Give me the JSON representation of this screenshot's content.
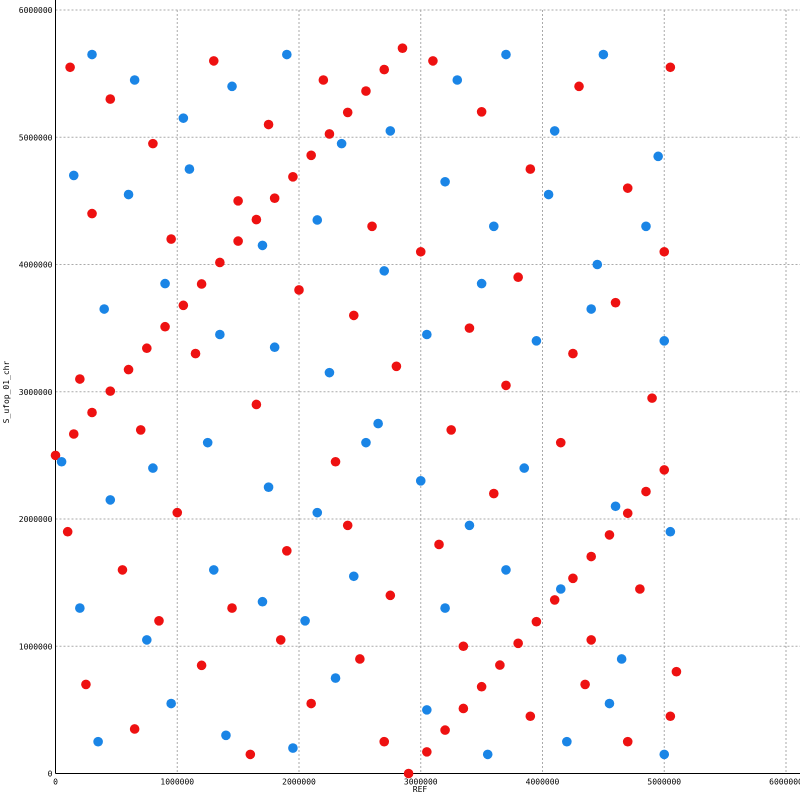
{
  "chart_data": {
    "type": "scatter",
    "xlabel": "REF",
    "ylabel": "S_ufop_01_chr",
    "xlim": [
      0,
      6000000
    ],
    "ylim": [
      0,
      6000000
    ],
    "xticks": [
      0,
      1000000,
      2000000,
      3000000,
      4000000,
      5000000,
      6000000
    ],
    "yticks": [
      0,
      1000000,
      2000000,
      3000000,
      4000000,
      5000000,
      6000000
    ],
    "grid": true,
    "series": [
      {
        "color": "#ee1111",
        "x": [
          0,
          150000,
          300000,
          450000,
          600000,
          750000,
          900000,
          1050000,
          1200000,
          1350000,
          1500000,
          1650000,
          1800000,
          1950000,
          2100000,
          2250000,
          2400000,
          2550000,
          2700000,
          2850000,
          2900000,
          3050000,
          3200000,
          3350000,
          3500000,
          3650000,
          3800000,
          3950000,
          4100000,
          4250000,
          4400000,
          4550000,
          4700000,
          4850000,
          5000000,
          120000,
          450000,
          800000,
          1300000,
          1750000,
          2200000,
          2600000,
          3100000,
          3500000,
          3900000,
          4300000,
          4700000,
          5050000,
          300000,
          950000,
          1500000,
          2000000,
          2450000,
          3000000,
          3400000,
          3800000,
          4250000,
          4600000,
          5000000,
          200000,
          700000,
          1150000,
          1650000,
          2300000,
          2800000,
          3250000,
          3700000,
          4150000,
          4900000,
          100000,
          550000,
          1000000,
          1450000,
          1900000,
          2400000,
          2750000,
          3150000,
          3600000,
          4400000,
          4800000,
          5100000,
          250000,
          650000,
          1200000,
          1600000,
          2100000,
          2500000,
          2700000,
          3350000,
          3900000,
          4350000,
          4700000,
          5050000,
          850000,
          1850000
        ],
        "values": [
          2500000,
          2668000,
          2837000,
          3005000,
          3174000,
          3342000,
          3511000,
          3679000,
          3847000,
          4016000,
          4184000,
          4353000,
          4521000,
          4689000,
          4858000,
          5026000,
          5195000,
          5363000,
          5532000,
          5700000,
          0,
          170000,
          341000,
          511000,
          682000,
          852000,
          1023000,
          1193000,
          1364000,
          1534000,
          1705000,
          1875000,
          2045000,
          2216000,
          2386000,
          5550000,
          5300000,
          4950000,
          5600000,
          5100000,
          5450000,
          4300000,
          5600000,
          5200000,
          4750000,
          5400000,
          4600000,
          5550000,
          4400000,
          4200000,
          4500000,
          3800000,
          3600000,
          4100000,
          3500000,
          3900000,
          3300000,
          3700000,
          4100000,
          3100000,
          2700000,
          3300000,
          2900000,
          2450000,
          3200000,
          2700000,
          3050000,
          2600000,
          2950000,
          1900000,
          1600000,
          2050000,
          1300000,
          1750000,
          1950000,
          1400000,
          1800000,
          2200000,
          1050000,
          1450000,
          800000,
          700000,
          350000,
          850000,
          150000,
          550000,
          900000,
          250000,
          1000000,
          450000,
          700000,
          250000,
          450000,
          1200000,
          1050000
        ]
      },
      {
        "color": "#1a85e6",
        "x": [
          300000,
          650000,
          1050000,
          1450000,
          1900000,
          2350000,
          2750000,
          3300000,
          3700000,
          4100000,
          4500000,
          4950000,
          150000,
          600000,
          1100000,
          1700000,
          2150000,
          2700000,
          3200000,
          3600000,
          4050000,
          4450000,
          4850000,
          400000,
          900000,
          1350000,
          1800000,
          2250000,
          2650000,
          3050000,
          3500000,
          3950000,
          4400000,
          5000000,
          50000,
          450000,
          800000,
          1250000,
          1750000,
          2150000,
          2550000,
          3000000,
          3400000,
          3850000,
          4600000,
          5050000,
          200000,
          750000,
          1300000,
          1700000,
          2050000,
          2450000,
          3200000,
          3700000,
          4150000,
          4650000,
          350000,
          950000,
          1400000,
          1950000,
          2300000,
          3050000,
          3550000,
          4200000,
          4550000,
          5000000
        ],
        "values": [
          5650000,
          5450000,
          5150000,
          5400000,
          5650000,
          4950000,
          5050000,
          5450000,
          5650000,
          5050000,
          5650000,
          4850000,
          4700000,
          4550000,
          4750000,
          4150000,
          4350000,
          3950000,
          4650000,
          4300000,
          4550000,
          4000000,
          4300000,
          3650000,
          3850000,
          3450000,
          3350000,
          3150000,
          2750000,
          3450000,
          3850000,
          3400000,
          3650000,
          3400000,
          2450000,
          2150000,
          2400000,
          2600000,
          2250000,
          2050000,
          2600000,
          2300000,
          1950000,
          2400000,
          2100000,
          1900000,
          1300000,
          1050000,
          1600000,
          1350000,
          1200000,
          1550000,
          1300000,
          1600000,
          1450000,
          900000,
          250000,
          550000,
          300000,
          200000,
          750000,
          500000,
          150000,
          250000,
          550000,
          150000
        ]
      }
    ]
  }
}
